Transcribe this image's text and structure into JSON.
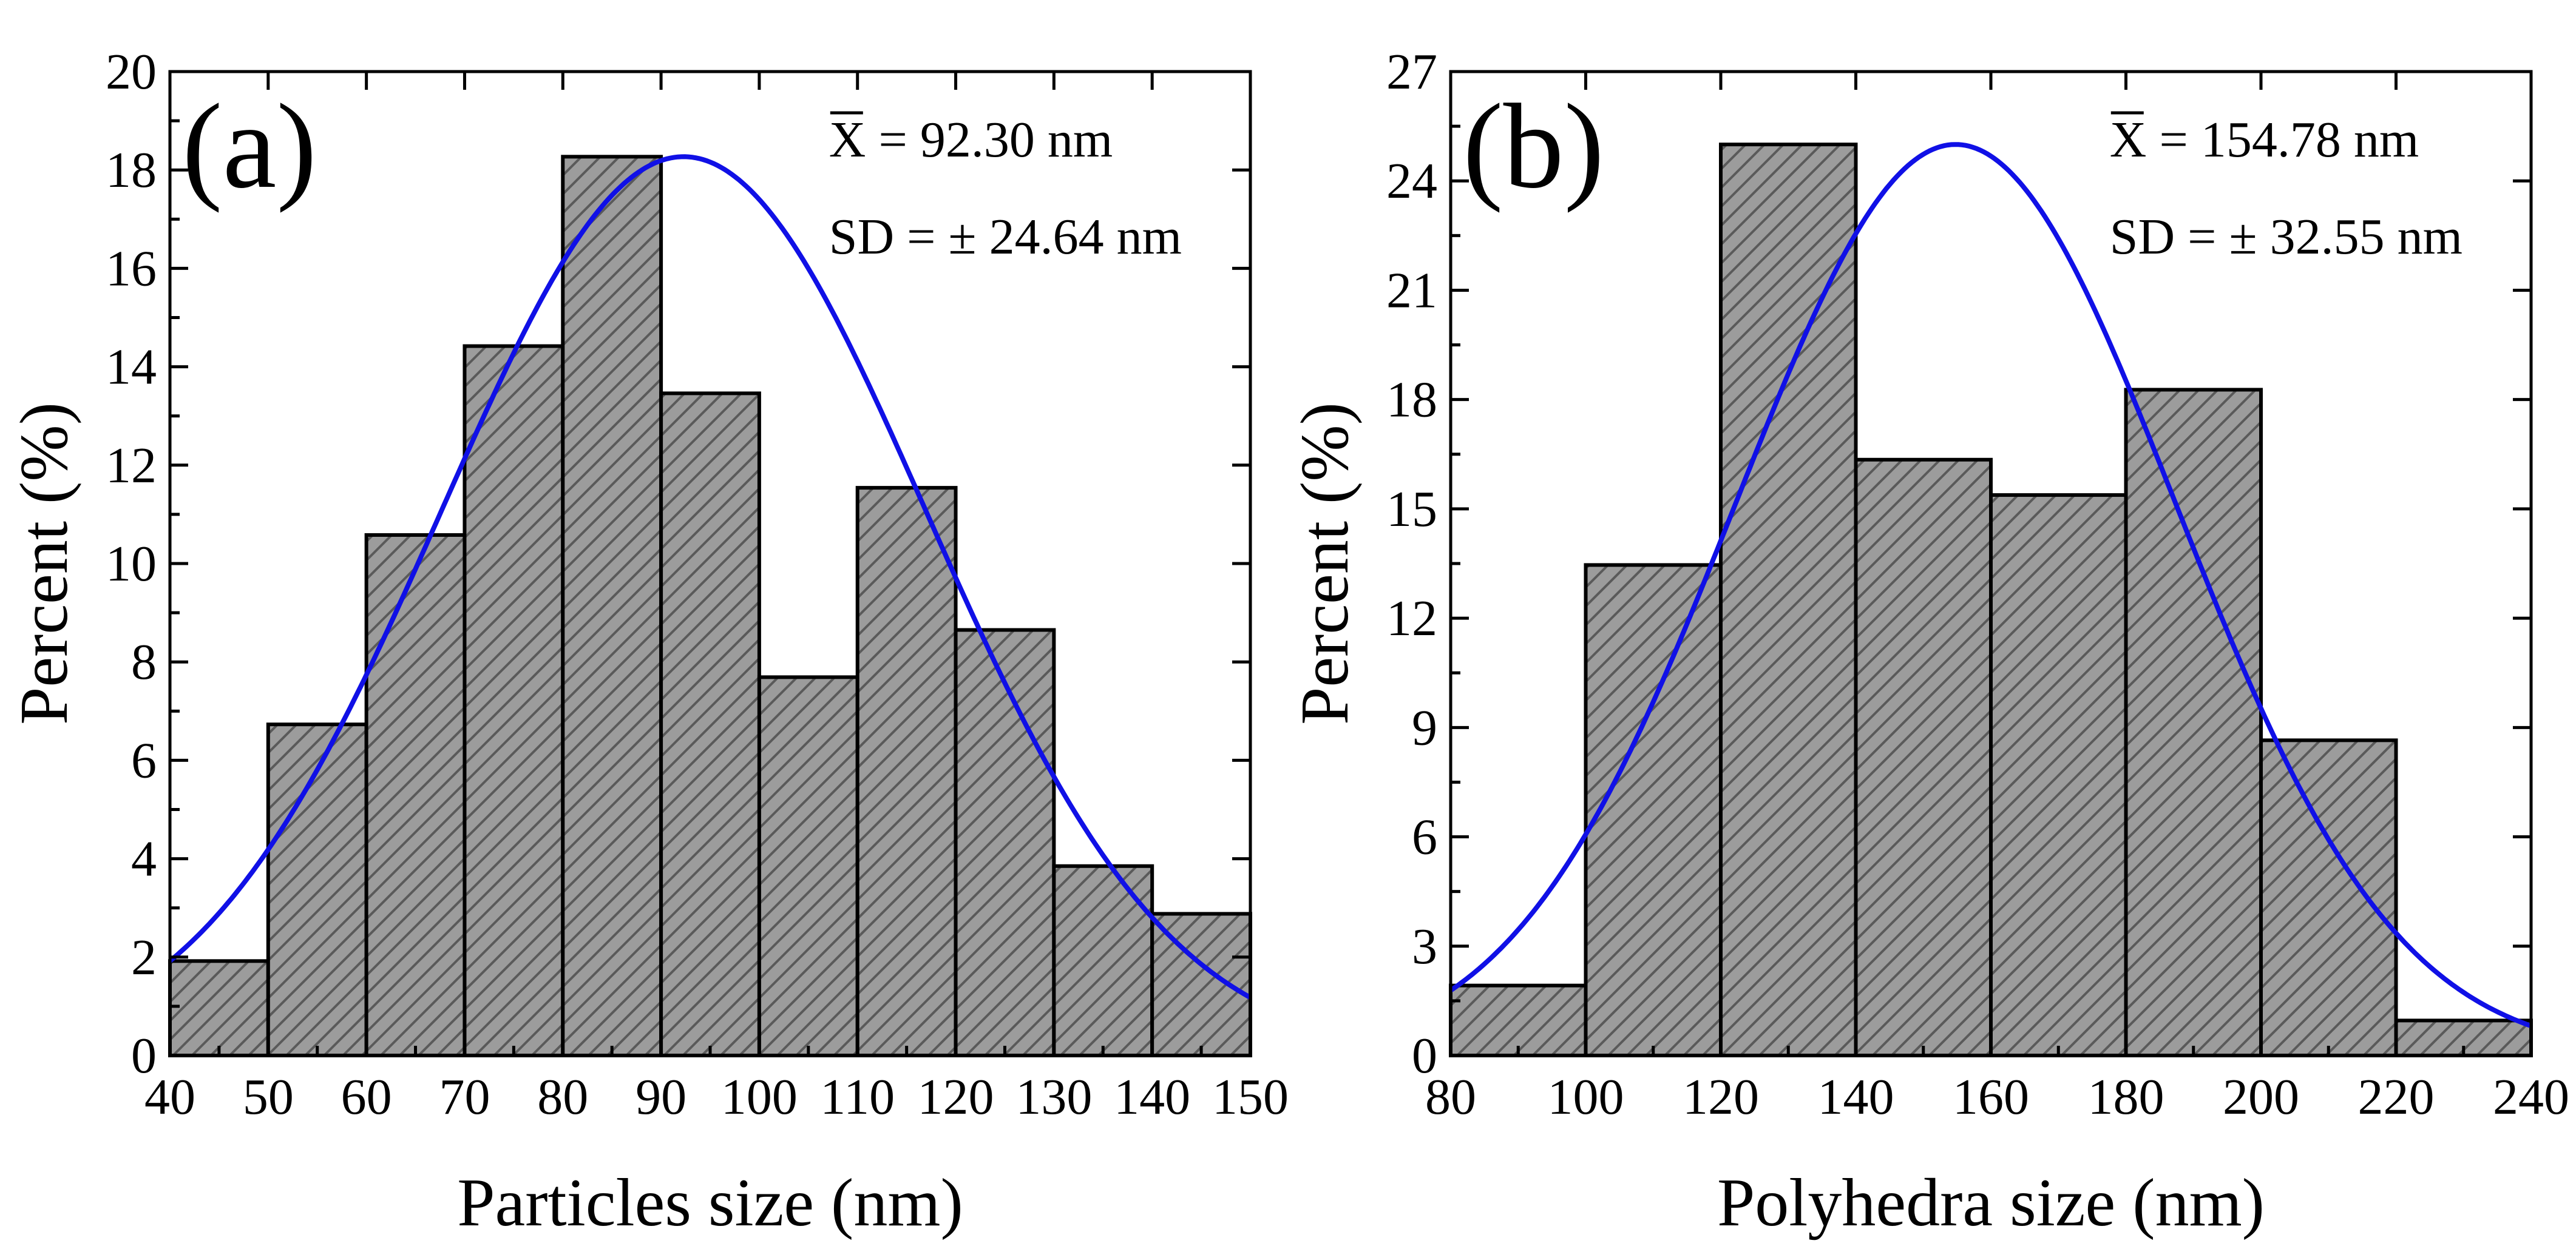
{
  "chart_data": [
    {
      "type": "bar",
      "panel_label": "(a)",
      "xlabel": "Particles size (nm)",
      "ylabel": "Percent (%)",
      "xlim": [
        40,
        150
      ],
      "ylim": [
        0,
        20
      ],
      "x_ticks": [
        40,
        50,
        60,
        70,
        80,
        90,
        100,
        110,
        120,
        130,
        140,
        150
      ],
      "y_ticks": [
        0,
        2,
        4,
        6,
        8,
        10,
        12,
        14,
        16,
        18,
        20
      ],
      "bin_edges": [
        40,
        50,
        60,
        70,
        80,
        90,
        100,
        110,
        120,
        130,
        140,
        150
      ],
      "values": [
        1.92,
        6.73,
        10.58,
        14.42,
        18.27,
        13.46,
        7.69,
        11.54,
        8.65,
        3.85,
        2.88
      ],
      "fit": {
        "type": "gaussian",
        "mean": 92.3,
        "sd": 24.64,
        "peak": 18.27
      },
      "stats": {
        "mean_label": "X",
        "mean_text": " = 92.30 nm",
        "sd_text": "SD = ± 24.64 nm"
      }
    },
    {
      "type": "bar",
      "panel_label": "(b)",
      "xlabel": "Polyhedra size (nm)",
      "ylabel": "Percent (%)",
      "xlim": [
        80,
        240
      ],
      "ylim": [
        0,
        27
      ],
      "x_ticks": [
        80,
        100,
        120,
        140,
        160,
        180,
        200,
        220,
        240
      ],
      "y_ticks": [
        0,
        3,
        6,
        9,
        12,
        15,
        18,
        21,
        24,
        27
      ],
      "bin_edges": [
        80,
        100,
        120,
        140,
        160,
        180,
        200,
        220,
        240
      ],
      "values": [
        1.92,
        13.46,
        25.0,
        16.35,
        15.38,
        18.27,
        8.65,
        0.96
      ],
      "fit": {
        "type": "gaussian",
        "mean": 154.78,
        "sd": 32.55,
        "peak": 25.0
      },
      "stats": {
        "mean_label": "X",
        "mean_text": " = 154.78 nm",
        "sd_text": "SD = ± 32.55 nm"
      }
    }
  ]
}
